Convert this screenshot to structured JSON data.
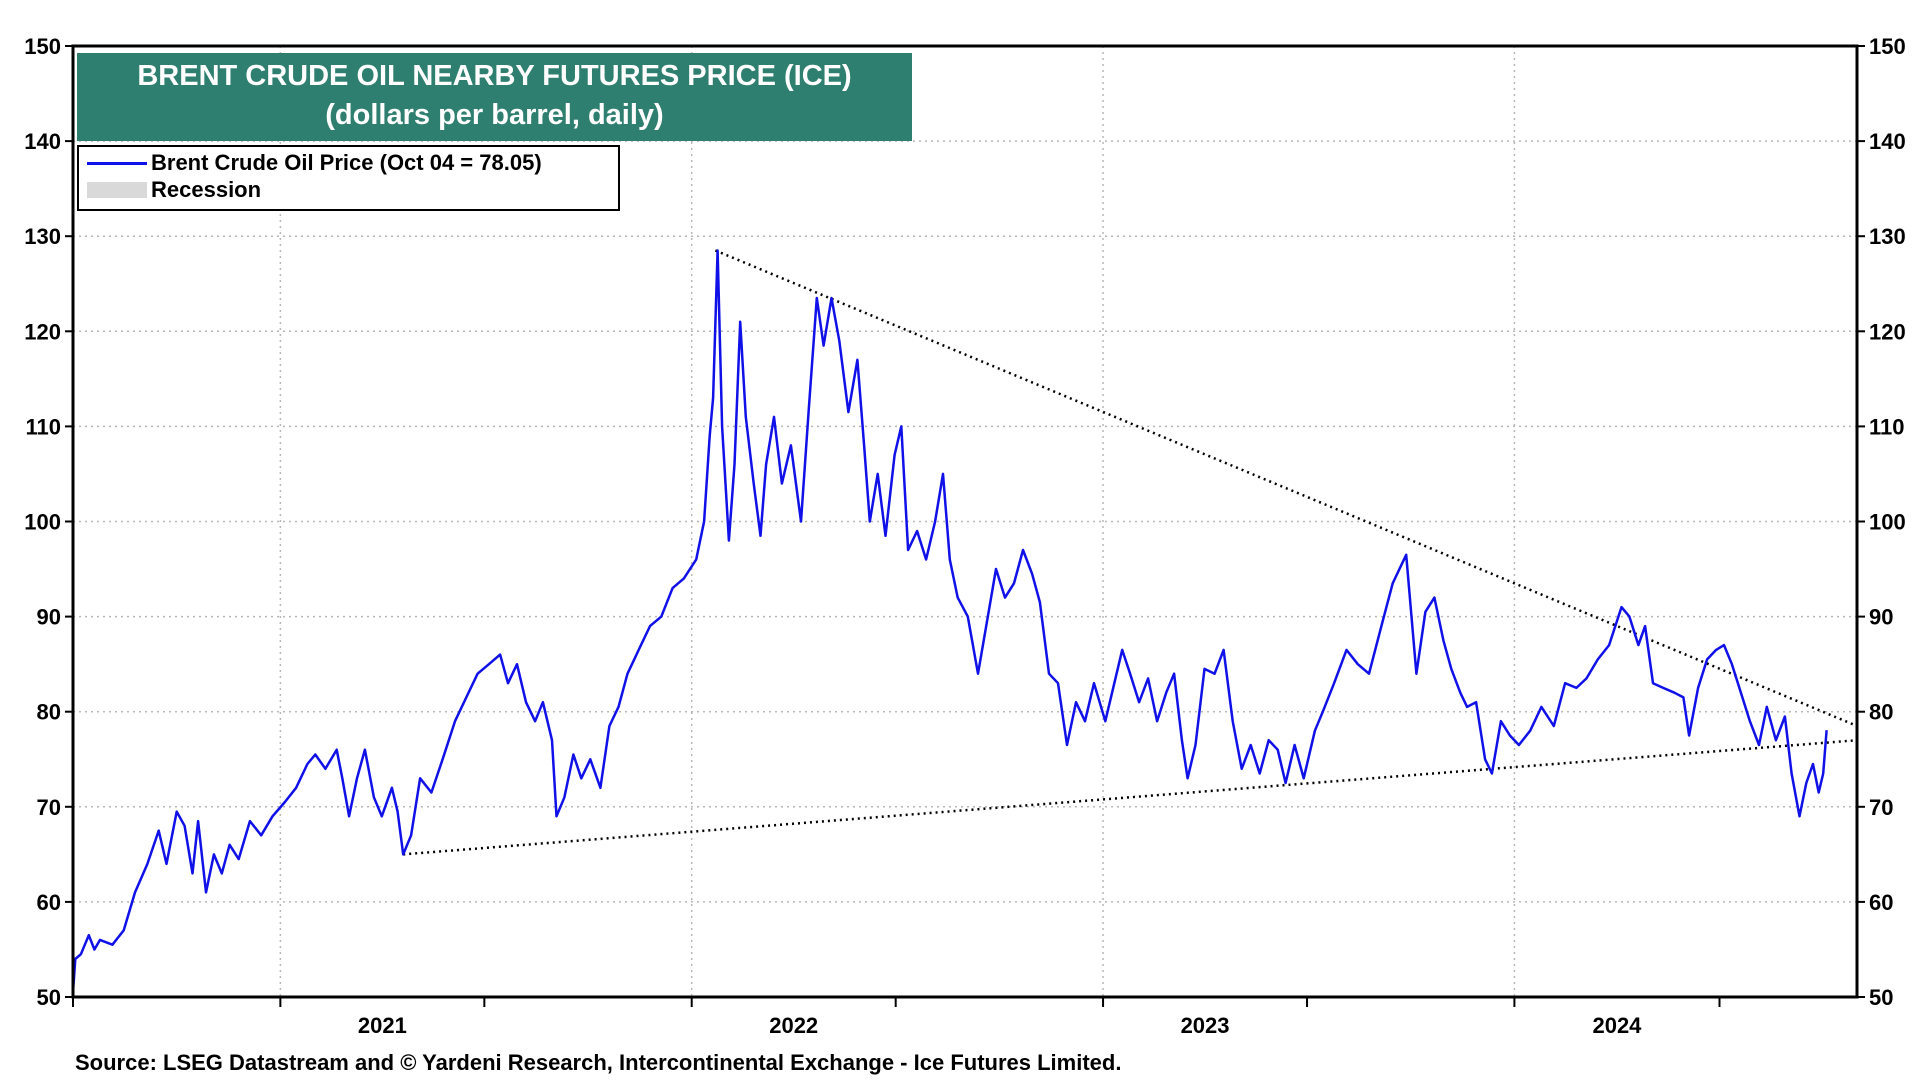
{
  "chart_data": {
    "type": "line",
    "title": "BRENT CRUDE OIL NEARBY FUTURES  PRICE (ICE)",
    "subtitle": "(dollars per barrel, daily)",
    "legend": [
      {
        "name": "Brent Crude Oil Price (Oct 04 = 78.05)",
        "color": "#1010e8",
        "kind": "line"
      },
      {
        "name": "Recession",
        "color": "#d9d9d9",
        "kind": "area"
      }
    ],
    "legend_position": "top-left",
    "source": "Source: LSEG Datastream and © Yardeni Research, Intercontinental Exchange - Ice Futures Limited.",
    "ylim": [
      50,
      150
    ],
    "yticks": [
      50,
      60,
      70,
      80,
      90,
      100,
      110,
      120,
      130,
      140,
      150
    ],
    "xlim": [
      "2020-07-01",
      "2024-10-31"
    ],
    "xticks": [
      "2021",
      "2022",
      "2023",
      "2024"
    ],
    "grid": true,
    "series": [
      {
        "name": "Brent Crude Oil Price (Oct 04 = 78.05)",
        "color": "#1010e8",
        "points": [
          [
            "2020-07-01",
            50.5
          ],
          [
            "2020-07-03",
            54.0
          ],
          [
            "2020-07-08",
            54.5
          ],
          [
            "2020-07-15",
            56.5
          ],
          [
            "2020-07-20",
            55.0
          ],
          [
            "2020-07-25",
            56.0
          ],
          [
            "2020-08-05",
            55.5
          ],
          [
            "2020-08-15",
            57.0
          ],
          [
            "2020-08-25",
            61.0
          ],
          [
            "2020-09-05",
            64.0
          ],
          [
            "2020-09-15",
            67.5
          ],
          [
            "2020-09-22",
            64.0
          ],
          [
            "2020-10-01",
            69.5
          ],
          [
            "2020-10-08",
            68.0
          ],
          [
            "2020-10-15",
            63.0
          ],
          [
            "2020-10-20",
            68.5
          ],
          [
            "2020-10-27",
            61.0
          ],
          [
            "2020-11-03",
            65.0
          ],
          [
            "2020-11-10",
            63.0
          ],
          [
            "2020-11-17",
            66.0
          ],
          [
            "2020-11-25",
            64.5
          ],
          [
            "2020-12-05",
            68.5
          ],
          [
            "2020-12-15",
            67.0
          ],
          [
            "2020-12-25",
            69.0
          ],
          [
            "2021-01-05",
            70.5
          ],
          [
            "2021-01-15",
            72.0
          ],
          [
            "2021-01-25",
            74.5
          ],
          [
            "2021-02-01",
            75.5
          ],
          [
            "2021-02-10",
            74.0
          ],
          [
            "2021-02-20",
            76.0
          ],
          [
            "2021-02-25",
            73.0
          ],
          [
            "2021-03-03",
            69.0
          ],
          [
            "2021-03-10",
            73.0
          ],
          [
            "2021-03-17",
            76.0
          ],
          [
            "2021-03-25",
            71.0
          ],
          [
            "2021-04-01",
            69.0
          ],
          [
            "2021-04-10",
            72.0
          ],
          [
            "2021-04-15",
            69.5
          ],
          [
            "2021-04-20",
            65.0
          ],
          [
            "2021-04-27",
            67.0
          ],
          [
            "2021-05-05",
            73.0
          ],
          [
            "2021-05-15",
            71.5
          ],
          [
            "2021-05-25",
            75.0
          ],
          [
            "2021-06-05",
            79.0
          ],
          [
            "2021-06-15",
            81.5
          ],
          [
            "2021-06-25",
            84.0
          ],
          [
            "2021-07-05",
            85.0
          ],
          [
            "2021-07-15",
            86.0
          ],
          [
            "2021-07-22",
            83.0
          ],
          [
            "2021-07-30",
            85.0
          ],
          [
            "2021-08-07",
            81.0
          ],
          [
            "2021-08-15",
            79.0
          ],
          [
            "2021-08-22",
            81.0
          ],
          [
            "2021-08-30",
            77.0
          ],
          [
            "2021-09-03",
            69.0
          ],
          [
            "2021-09-10",
            71.0
          ],
          [
            "2021-09-18",
            75.5
          ],
          [
            "2021-09-25",
            73.0
          ],
          [
            "2021-10-03",
            75.0
          ],
          [
            "2021-10-12",
            72.0
          ],
          [
            "2021-10-20",
            78.5
          ],
          [
            "2021-10-28",
            80.5
          ],
          [
            "2021-11-05",
            84.0
          ],
          [
            "2021-11-15",
            86.5
          ],
          [
            "2021-11-25",
            89.0
          ],
          [
            "2021-12-05",
            90.0
          ],
          [
            "2021-12-15",
            93.0
          ],
          [
            "2021-12-25",
            94.0
          ],
          [
            "2022-01-05",
            96.0
          ],
          [
            "2022-01-12",
            100.0
          ],
          [
            "2022-01-17",
            109.0
          ],
          [
            "2022-01-20",
            113.0
          ],
          [
            "2022-01-24",
            128.5
          ],
          [
            "2022-01-28",
            110.0
          ],
          [
            "2022-02-03",
            98.0
          ],
          [
            "2022-02-08",
            106.0
          ],
          [
            "2022-02-13",
            121.0
          ],
          [
            "2022-02-18",
            111.0
          ],
          [
            "2022-02-25",
            104.0
          ],
          [
            "2022-03-03",
            98.5
          ],
          [
            "2022-03-08",
            106.0
          ],
          [
            "2022-03-15",
            111.0
          ],
          [
            "2022-03-22",
            104.0
          ],
          [
            "2022-03-30",
            108.0
          ],
          [
            "2022-04-08",
            100.0
          ],
          [
            "2022-04-15",
            112.0
          ],
          [
            "2022-04-22",
            123.5
          ],
          [
            "2022-04-28",
            118.5
          ],
          [
            "2022-05-05",
            123.5
          ],
          [
            "2022-05-12",
            119.0
          ],
          [
            "2022-05-20",
            111.5
          ],
          [
            "2022-05-28",
            117.0
          ],
          [
            "2022-06-03",
            108.0
          ],
          [
            "2022-06-08",
            100.0
          ],
          [
            "2022-06-15",
            105.0
          ],
          [
            "2022-06-22",
            98.5
          ],
          [
            "2022-06-30",
            107.0
          ],
          [
            "2022-07-06",
            110.0
          ],
          [
            "2022-07-12",
            97.0
          ],
          [
            "2022-07-20",
            99.0
          ],
          [
            "2022-07-28",
            96.0
          ],
          [
            "2022-08-05",
            100.0
          ],
          [
            "2022-08-12",
            105.0
          ],
          [
            "2022-08-18",
            96.0
          ],
          [
            "2022-08-25",
            92.0
          ],
          [
            "2022-09-03",
            90.0
          ],
          [
            "2022-09-12",
            84.0
          ],
          [
            "2022-09-20",
            89.5
          ],
          [
            "2022-09-28",
            95.0
          ],
          [
            "2022-10-06",
            92.0
          ],
          [
            "2022-10-14",
            93.5
          ],
          [
            "2022-10-22",
            97.0
          ],
          [
            "2022-10-30",
            94.5
          ],
          [
            "2022-11-06",
            91.5
          ],
          [
            "2022-11-14",
            84.0
          ],
          [
            "2022-11-22",
            83.0
          ],
          [
            "2022-11-30",
            76.5
          ],
          [
            "2022-12-08",
            81.0
          ],
          [
            "2022-12-16",
            79.0
          ],
          [
            "2022-12-24",
            83.0
          ],
          [
            "2023-01-03",
            79.0
          ],
          [
            "2023-01-10",
            82.5
          ],
          [
            "2023-01-18",
            86.5
          ],
          [
            "2023-01-25",
            84.0
          ],
          [
            "2023-02-02",
            81.0
          ],
          [
            "2023-02-10",
            83.5
          ],
          [
            "2023-02-18",
            79.0
          ],
          [
            "2023-02-26",
            82.0
          ],
          [
            "2023-03-05",
            84.0
          ],
          [
            "2023-03-12",
            77.0
          ],
          [
            "2023-03-17",
            73.0
          ],
          [
            "2023-03-24",
            76.5
          ],
          [
            "2023-04-01",
            84.5
          ],
          [
            "2023-04-10",
            84.0
          ],
          [
            "2023-04-18",
            86.5
          ],
          [
            "2023-04-26",
            79.0
          ],
          [
            "2023-05-04",
            74.0
          ],
          [
            "2023-05-12",
            76.5
          ],
          [
            "2023-05-20",
            73.5
          ],
          [
            "2023-05-28",
            77.0
          ],
          [
            "2023-06-05",
            76.0
          ],
          [
            "2023-06-12",
            72.5
          ],
          [
            "2023-06-20",
            76.5
          ],
          [
            "2023-06-28",
            73.0
          ],
          [
            "2023-07-08",
            78.0
          ],
          [
            "2023-07-15",
            80.0
          ],
          [
            "2023-07-25",
            83.0
          ],
          [
            "2023-08-05",
            86.5
          ],
          [
            "2023-08-15",
            85.0
          ],
          [
            "2023-08-25",
            84.0
          ],
          [
            "2023-09-05",
            89.0
          ],
          [
            "2023-09-15",
            93.5
          ],
          [
            "2023-09-27",
            96.5
          ],
          [
            "2023-10-06",
            84.0
          ],
          [
            "2023-10-14",
            90.5
          ],
          [
            "2023-10-22",
            92.0
          ],
          [
            "2023-10-30",
            87.5
          ],
          [
            "2023-11-06",
            84.5
          ],
          [
            "2023-11-14",
            82.0
          ],
          [
            "2023-11-20",
            80.5
          ],
          [
            "2023-11-28",
            81.0
          ],
          [
            "2023-12-06",
            75.0
          ],
          [
            "2023-12-12",
            73.5
          ],
          [
            "2023-12-20",
            79.0
          ],
          [
            "2023-12-28",
            77.5
          ],
          [
            "2024-01-05",
            76.5
          ],
          [
            "2024-01-15",
            78.0
          ],
          [
            "2024-01-25",
            80.5
          ],
          [
            "2024-02-05",
            78.5
          ],
          [
            "2024-02-15",
            83.0
          ],
          [
            "2024-02-25",
            82.5
          ],
          [
            "2024-03-05",
            83.5
          ],
          [
            "2024-03-15",
            85.5
          ],
          [
            "2024-03-25",
            87.0
          ],
          [
            "2024-04-05",
            91.0
          ],
          [
            "2024-04-12",
            90.0
          ],
          [
            "2024-04-20",
            87.0
          ],
          [
            "2024-04-26",
            89.0
          ],
          [
            "2024-05-03",
            83.0
          ],
          [
            "2024-05-12",
            82.5
          ],
          [
            "2024-05-22",
            82.0
          ],
          [
            "2024-05-30",
            81.5
          ],
          [
            "2024-06-04",
            77.5
          ],
          [
            "2024-06-12",
            82.5
          ],
          [
            "2024-06-20",
            85.5
          ],
          [
            "2024-06-28",
            86.5
          ],
          [
            "2024-07-05",
            87.0
          ],
          [
            "2024-07-12",
            85.0
          ],
          [
            "2024-07-20",
            82.0
          ],
          [
            "2024-07-28",
            79.0
          ],
          [
            "2024-08-05",
            76.5
          ],
          [
            "2024-08-12",
            80.5
          ],
          [
            "2024-08-20",
            77.0
          ],
          [
            "2024-08-28",
            79.5
          ],
          [
            "2024-09-03",
            73.5
          ],
          [
            "2024-09-10",
            69.0
          ],
          [
            "2024-09-16",
            72.5
          ],
          [
            "2024-09-22",
            74.5
          ],
          [
            "2024-09-27",
            71.5
          ],
          [
            "2024-10-01",
            73.5
          ],
          [
            "2024-10-04",
            78.05
          ]
        ]
      }
    ],
    "trendlines": [
      {
        "from": [
          "2022-01-22",
          128.5
        ],
        "to": [
          "2024-10-31",
          78.5
        ],
        "style": "dotted"
      },
      {
        "from": [
          "2021-04-20",
          65.0
        ],
        "to": [
          "2024-10-31",
          77.0
        ],
        "style": "dotted"
      }
    ]
  }
}
